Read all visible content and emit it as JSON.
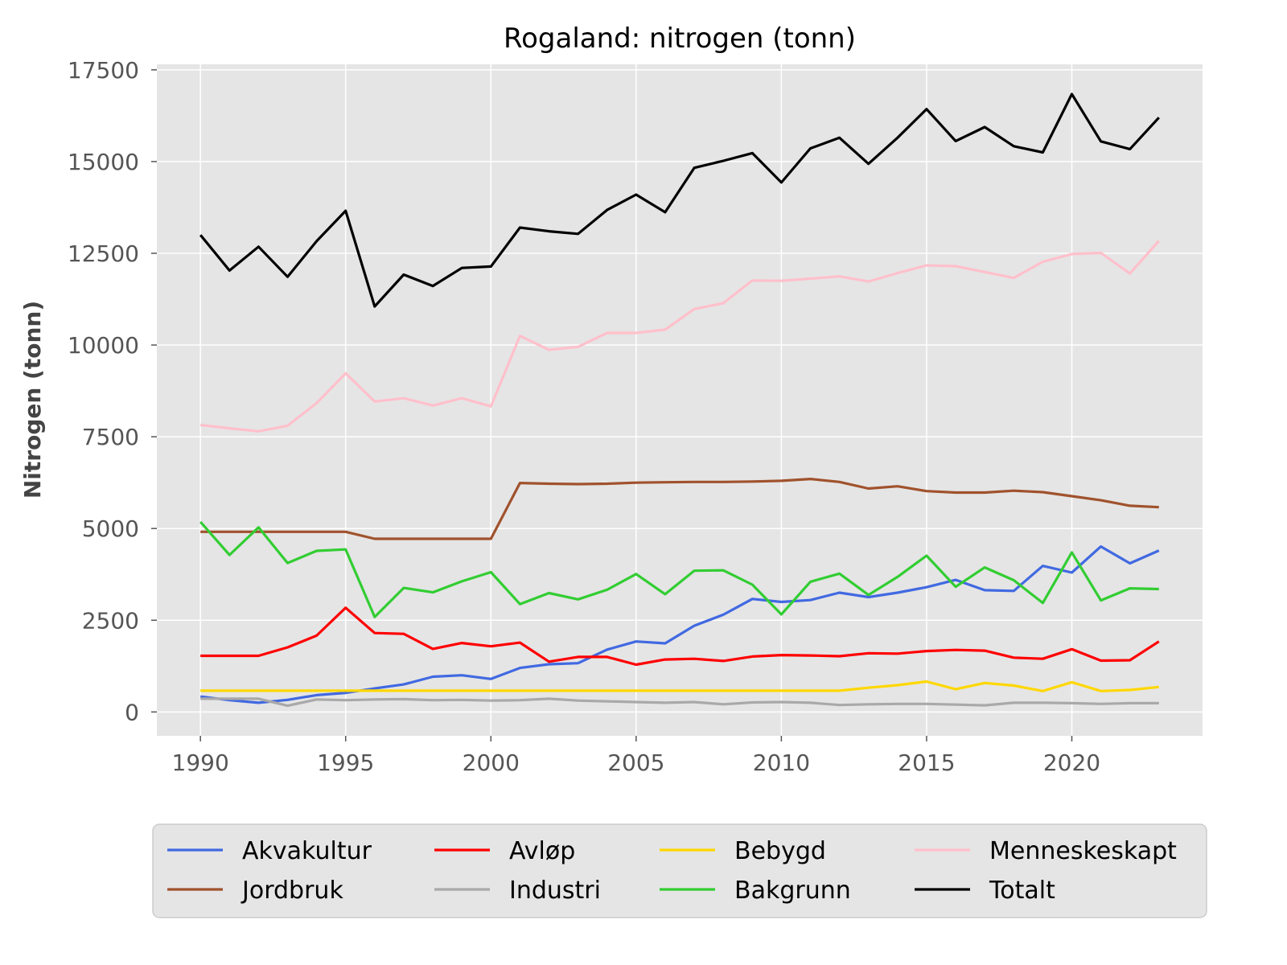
{
  "chart_data": {
    "type": "line",
    "title": "Rogaland: nitrogen (tonn)",
    "xlabel": "",
    "ylabel": "Nitrogen (tonn)",
    "xlim": [
      1988.5,
      2024.5
    ],
    "ylim": [
      -650,
      17650
    ],
    "x_ticks": [
      1990,
      1995,
      2000,
      2005,
      2010,
      2015,
      2020
    ],
    "y_ticks": [
      0,
      2500,
      5000,
      7500,
      10000,
      12500,
      15000,
      17500
    ],
    "grid": true,
    "legend_position": "bottom",
    "background": "#e5e5e5",
    "x": [
      1990,
      1991,
      1992,
      1993,
      1994,
      1995,
      1996,
      1997,
      1998,
      1999,
      2000,
      2001,
      2002,
      2003,
      2004,
      2005,
      2006,
      2007,
      2008,
      2009,
      2010,
      2011,
      2012,
      2013,
      2014,
      2015,
      2016,
      2017,
      2018,
      2019,
      2020,
      2021,
      2022,
      2023
    ],
    "series": [
      {
        "name": "Akvakultur",
        "color": "#4169e1",
        "values": [
          420,
          320,
          250,
          330,
          460,
          520,
          640,
          750,
          960,
          1000,
          900,
          1200,
          1300,
          1330,
          1700,
          1920,
          1870,
          2350,
          2650,
          3080,
          3000,
          3050,
          3250,
          3130,
          3250,
          3400,
          3600,
          3320,
          3300,
          3980,
          3800,
          4510,
          4050,
          4400
        ]
      },
      {
        "name": "Avløp",
        "color": "#ff0000",
        "values": [
          1530,
          1530,
          1530,
          1760,
          2080,
          2840,
          2150,
          2130,
          1720,
          1880,
          1790,
          1890,
          1370,
          1500,
          1500,
          1290,
          1430,
          1450,
          1390,
          1510,
          1550,
          1540,
          1520,
          1600,
          1590,
          1660,
          1690,
          1670,
          1480,
          1450,
          1710,
          1400,
          1410,
          1920
        ]
      },
      {
        "name": "Bebygd",
        "color": "#ffd700",
        "values": [
          580,
          580,
          580,
          580,
          580,
          580,
          580,
          580,
          580,
          580,
          580,
          580,
          580,
          580,
          580,
          580,
          580,
          580,
          580,
          580,
          580,
          580,
          580,
          660,
          730,
          830,
          620,
          790,
          720,
          570,
          810,
          570,
          600,
          680
        ]
      },
      {
        "name": "Menneskeskapt",
        "color": "#ffc0cb",
        "values": [
          7820,
          7730,
          7650,
          7800,
          8420,
          9230,
          8460,
          8550,
          8350,
          8550,
          8330,
          10250,
          9870,
          9950,
          10330,
          10330,
          10420,
          10980,
          11140,
          11760,
          11750,
          11810,
          11870,
          11730,
          11960,
          12170,
          12150,
          11990,
          11830,
          12270,
          12480,
          12510,
          11950,
          12840
        ]
      },
      {
        "name": "Jordbruk",
        "color": "#a0522d",
        "values": [
          4910,
          4910,
          4910,
          4910,
          4910,
          4910,
          4720,
          4720,
          4720,
          4720,
          4720,
          6240,
          6220,
          6210,
          6220,
          6250,
          6260,
          6270,
          6270,
          6280,
          6300,
          6350,
          6270,
          6090,
          6150,
          6020,
          5980,
          5980,
          6030,
          5990,
          5880,
          5770,
          5620,
          5580
        ]
      },
      {
        "name": "Industri",
        "color": "#a9a9a9",
        "values": [
          360,
          360,
          360,
          170,
          340,
          320,
          340,
          350,
          320,
          330,
          310,
          320,
          360,
          310,
          290,
          270,
          250,
          270,
          210,
          260,
          270,
          250,
          190,
          210,
          220,
          220,
          200,
          180,
          250,
          250,
          240,
          220,
          240,
          240
        ]
      },
      {
        "name": "Bakgrunn",
        "color": "#32cd32",
        "values": [
          5180,
          4280,
          5030,
          4060,
          4390,
          4430,
          2590,
          3380,
          3260,
          3560,
          3810,
          2940,
          3240,
          3070,
          3330,
          3760,
          3210,
          3850,
          3860,
          3470,
          2660,
          3550,
          3770,
          3190,
          3680,
          4260,
          3410,
          3940,
          3590,
          2970,
          4350,
          3040,
          3370,
          3350
        ]
      },
      {
        "name": "Totalt",
        "color": "#000000",
        "values": [
          13000,
          12030,
          12680,
          11860,
          12830,
          13660,
          11050,
          11920,
          11610,
          12100,
          12140,
          13200,
          13100,
          13030,
          13680,
          14100,
          13620,
          14830,
          15020,
          15230,
          14430,
          15360,
          15650,
          14940,
          15650,
          16430,
          15560,
          15940,
          15420,
          15250,
          16840,
          15550,
          15340,
          16200
        ]
      }
    ],
    "legend_order": [
      "Akvakultur",
      "Avløp",
      "Bebygd",
      "Menneskeskapt",
      "Jordbruk",
      "Industri",
      "Bakgrunn",
      "Totalt"
    ]
  }
}
